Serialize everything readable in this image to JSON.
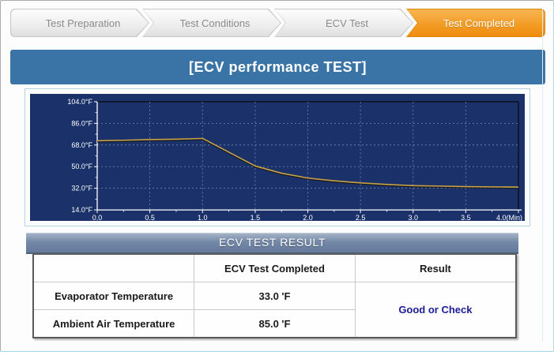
{
  "steps": {
    "items": [
      {
        "label": "Test Preparation",
        "state": "inactive"
      },
      {
        "label": "Test Conditions",
        "state": "inactive"
      },
      {
        "label": "ECV Test",
        "state": "inactive"
      },
      {
        "label": "Test Completed",
        "state": "active"
      }
    ],
    "active_color": "#ef8c0e",
    "inactive_text_color": "#8b8b8b"
  },
  "header": {
    "title": "[ECV performance TEST]",
    "bg_color": "#3a74a6"
  },
  "chart_data": {
    "type": "line",
    "title": "",
    "xlabel": "(Min)",
    "ylabel": "°F",
    "xlim": [
      0,
      4
    ],
    "ylim": [
      14,
      104
    ],
    "x_tick_values": [
      0,
      0.5,
      1,
      1.5,
      2,
      2.5,
      3,
      3.5,
      4
    ],
    "x_tick_labels": [
      "0.0",
      "0.5",
      "1.0",
      "1.5",
      "2.0",
      "2.5",
      "3.0",
      "3.5",
      "4.0(Min)"
    ],
    "x_minor_step": 0.25,
    "y_tick_values": [
      104,
      86,
      68,
      50,
      32,
      14
    ],
    "y_tick_labels": [
      "104.0°F",
      "86.0°F",
      "68.0°F",
      "50.0°F",
      "32.0°F",
      "14.0°F"
    ],
    "y_minor_step": 9,
    "grid": true,
    "legend": false,
    "colors": {
      "background": "#1a3269",
      "grid": "#8392b4",
      "axis": "#ffffff",
      "frame": "#0d1322",
      "series_shadow": "#161616"
    },
    "series": [
      {
        "name": "Evaporator Temperature",
        "color": "#c9a145",
        "x": [
          0,
          0.25,
          0.5,
          0.75,
          1.0,
          1.25,
          1.5,
          1.75,
          2.0,
          2.25,
          2.5,
          2.75,
          3.0,
          3.25,
          3.5,
          3.75,
          4.0
        ],
        "y": [
          71.5,
          72.0,
          72.5,
          72.8,
          73.5,
          62.0,
          50.5,
          44.5,
          40.5,
          38.2,
          36.5,
          35.2,
          34.2,
          33.8,
          33.4,
          33.2,
          33.0
        ]
      }
    ]
  },
  "result_section": {
    "title": "ECV TEST RESULT",
    "table": {
      "columns": [
        "",
        "ECV Test Completed",
        "Result"
      ],
      "rows": [
        {
          "label": "Evaporator Temperature",
          "value": "33.0 'F"
        },
        {
          "label": "Ambient Air Temperature",
          "value": "85.0 'F"
        }
      ],
      "result_text": "Good or Check",
      "result_color": "#1c1c99"
    }
  }
}
